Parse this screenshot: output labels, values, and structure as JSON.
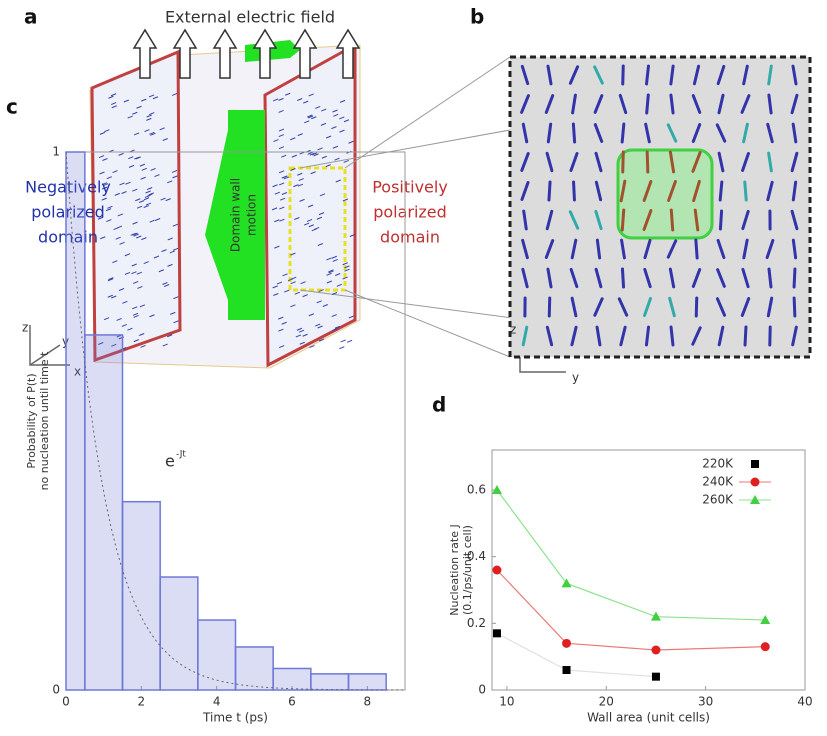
{
  "panel_a": {
    "label": "a",
    "title": "External electric field",
    "left_label": [
      "Negatively",
      "polarized",
      "domain"
    ],
    "center_label": [
      "Domain wall",
      "motion"
    ],
    "right_label": [
      "Positively",
      "polarized",
      "domain"
    ],
    "axes": [
      "z",
      "y",
      "x"
    ]
  },
  "panel_b": {
    "label": "b",
    "axes": [
      "z",
      "y"
    ]
  },
  "chart_data": [
    {
      "type": "histogram",
      "panel": "c",
      "y_label": [
        "Probability of P(t)",
        "no nucleation until time t"
      ],
      "x_label": "Time t (ps)",
      "annotation": {
        "base": "e",
        "superscript": "-Jt"
      },
      "bins": [
        0,
        0.5,
        1.5,
        2.5,
        3.5,
        4.5,
        5.5,
        6.5,
        7.5,
        8.5
      ],
      "values": [
        1.0,
        0.66,
        0.35,
        0.21,
        0.13,
        0.08,
        0.04,
        0.03,
        0.03
      ],
      "color": "#6f78d8",
      "xlim": [
        0,
        9
      ],
      "xticks": [
        0,
        2,
        4,
        6,
        8
      ],
      "ylim": [
        0,
        1
      ],
      "yticks": [
        0,
        1
      ]
    },
    {
      "type": "line",
      "panel": "d",
      "y_label": [
        "Nucleation rate J",
        "(0.1/ps/unit cell)"
      ],
      "x_label": "Wall area (unit cells)",
      "legend": "upper right",
      "series": [
        {
          "name": "220K",
          "color": "#000000",
          "marker": "square",
          "x": [
            9,
            16,
            25
          ],
          "values": [
            0.17,
            0.06,
            0.04
          ]
        },
        {
          "name": "240K",
          "color": "#e02020",
          "marker": "circle",
          "x": [
            9,
            16,
            25,
            36
          ],
          "values": [
            0.36,
            0.14,
            0.12,
            0.13
          ]
        },
        {
          "name": "260K",
          "color": "#40d040",
          "marker": "triangle",
          "x": [
            9,
            16,
            25,
            36
          ],
          "values": [
            0.6,
            0.32,
            0.22,
            0.21
          ]
        }
      ],
      "xlim": [
        8.5,
        40
      ],
      "xticks": [
        10,
        20,
        30,
        40
      ],
      "ylim": [
        0,
        0.72
      ],
      "yticks": [
        0,
        0.2,
        0.4,
        0.6
      ]
    }
  ]
}
